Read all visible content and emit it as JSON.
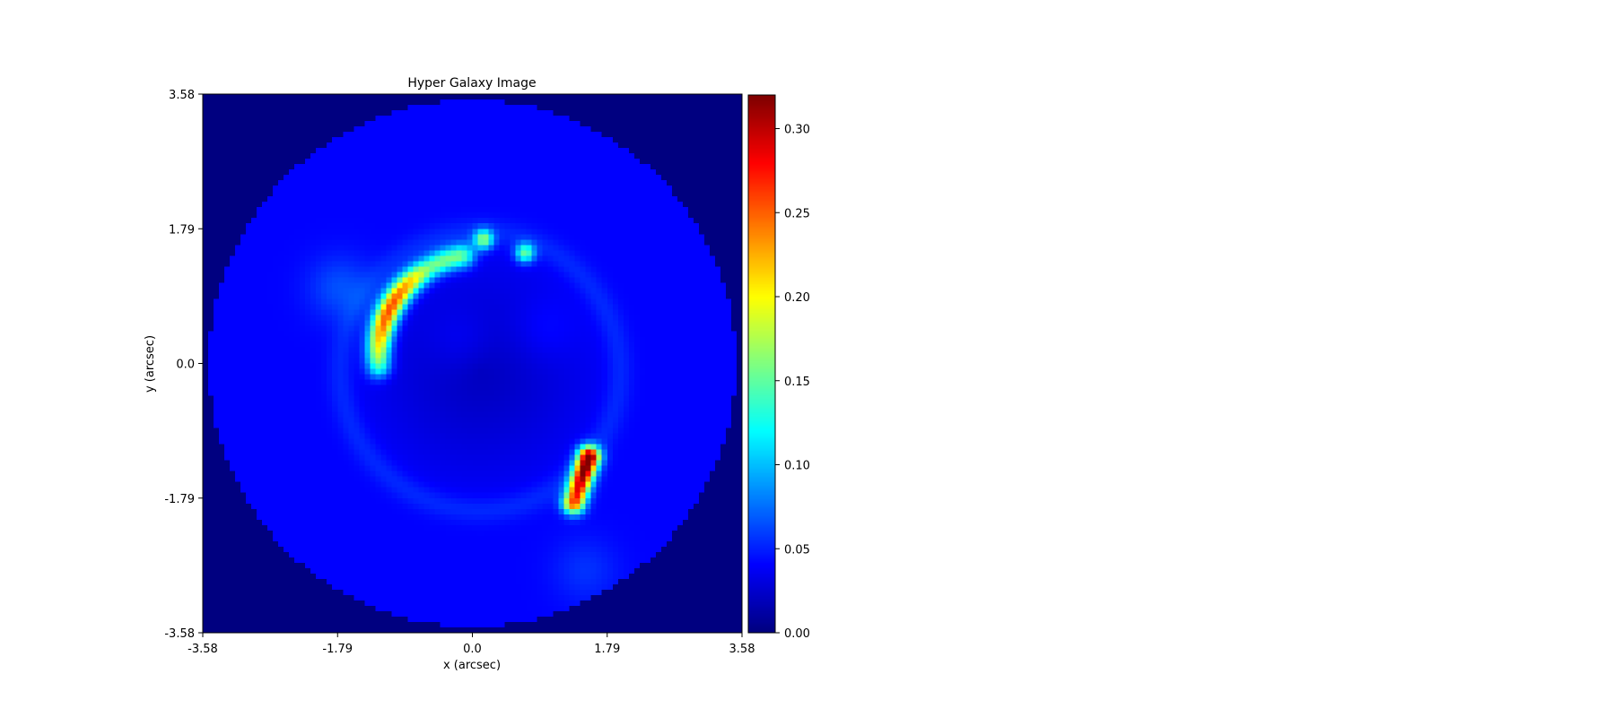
{
  "chart_data": {
    "type": "heatmap",
    "title": "Hyper Galaxy Image",
    "xlabel": "x (arcsec)",
    "ylabel": "y (arcsec)",
    "xlim": [
      -3.58,
      3.58
    ],
    "ylim": [
      -3.58,
      3.58
    ],
    "x_ticks": [
      -3.58,
      -1.79,
      0.0,
      1.79,
      3.58
    ],
    "x_tick_labels": [
      "-3.58",
      "-1.79",
      "0.0",
      "1.79",
      "3.58"
    ],
    "y_ticks": [
      3.58,
      1.79,
      0.0,
      -1.79,
      -3.58
    ],
    "y_tick_labels": [
      "3.58",
      "1.79",
      "0.0",
      "-1.79",
      "-3.58"
    ],
    "colormap": "jet",
    "colorbar": {
      "range": [
        0.0,
        0.32
      ],
      "ticks": [
        0.0,
        0.05,
        0.1,
        0.15,
        0.2,
        0.25,
        0.3
      ],
      "tick_labels": [
        "0.00",
        "0.05",
        "0.10",
        "0.15",
        "0.20",
        "0.25",
        "0.30"
      ]
    },
    "features": {
      "mask_radius_arcsec": 3.5,
      "background_value": 0.0,
      "disk_base_value": 0.04,
      "inner_faint_ring": {
        "center": [
          0.1,
          -0.1
        ],
        "radius": 1.85,
        "value": 0.022
      },
      "arc": {
        "center": [
          0.1,
          0.1
        ],
        "radius": 1.35,
        "start_deg": 185,
        "end_deg": 100,
        "peak_value": 0.22
      },
      "arc_clumps": [
        {
          "x": 0.15,
          "y": 1.65,
          "value": 0.12
        },
        {
          "x": 0.7,
          "y": 1.47,
          "value": 0.11
        }
      ],
      "counter_image": {
        "from": [
          1.55,
          -1.25
        ],
        "to": [
          1.35,
          -1.85
        ],
        "peak_value": 0.3,
        "bright_pixel": {
          "x": 1.55,
          "y": -1.27,
          "value": 0.32
        }
      },
      "faint_blobs": [
        {
          "x": -1.75,
          "y": 1.0,
          "value": 0.065
        },
        {
          "x": 1.5,
          "y": -2.75,
          "value": 0.055
        },
        {
          "x": -0.15,
          "y": 0.3,
          "value": 0.05
        },
        {
          "x": 0.95,
          "y": 0.45,
          "value": 0.05
        }
      ]
    }
  }
}
